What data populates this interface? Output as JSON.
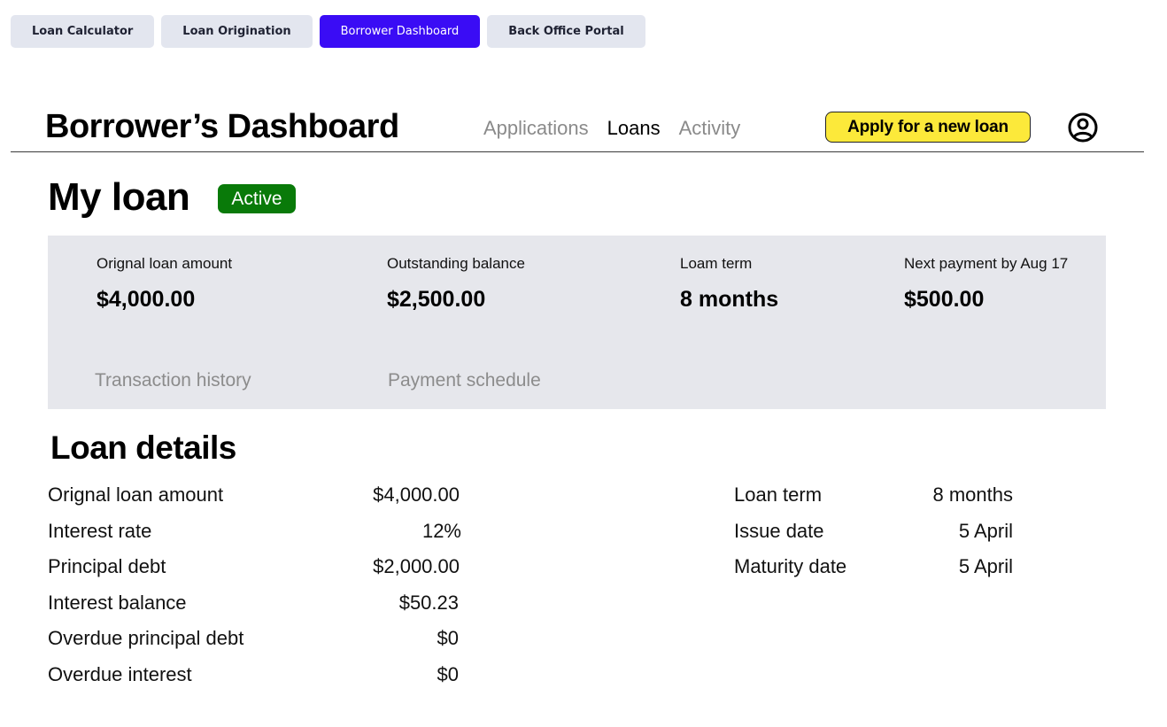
{
  "switcher": {
    "tabs": [
      {
        "label": "Loan Calculator",
        "active": false
      },
      {
        "label": "Loan Origination",
        "active": false
      },
      {
        "label": "Borrower Dashboard",
        "active": true
      },
      {
        "label": "Back Office Portal",
        "active": false
      }
    ]
  },
  "header": {
    "title": "Borrower’s Dashboard",
    "nav": [
      {
        "label": "Applications",
        "active": false
      },
      {
        "label": "Loans",
        "active": true
      },
      {
        "label": "Activity",
        "active": false
      }
    ],
    "apply_label": "Apply for a new loan",
    "profile_icon": "user-circle-icon"
  },
  "loan": {
    "title": "My loan",
    "status": "Active",
    "summary": [
      {
        "label": "Orignal loan amount",
        "value": "$4,000.00"
      },
      {
        "label": "Outstanding balance",
        "value": "$2,500.00"
      },
      {
        "label": "Loam term",
        "value": "8 months"
      },
      {
        "label": "Next payment by Aug 17",
        "value": "$500.00"
      }
    ],
    "links": {
      "transaction_history": "Transaction history",
      "payment_schedule": "Payment schedule"
    }
  },
  "details": {
    "title": "Loan details",
    "left": [
      {
        "label": "Orignal loan amount",
        "value": "$4,000.00"
      },
      {
        "label": "Interest rate",
        "value": "12%"
      },
      {
        "label": "Principal debt",
        "value": "$2,000.00"
      },
      {
        "label": "Interest balance",
        "value": "$50.23"
      },
      {
        "label": "Overdue principal debt",
        "value": "$0"
      },
      {
        "label": "Overdue interest",
        "value": "$0"
      }
    ],
    "right": [
      {
        "label": "Loan term",
        "value": "8 months"
      },
      {
        "label": "Issue date",
        "value": "5 April"
      },
      {
        "label": "Maturity date",
        "value": "5 April"
      }
    ]
  },
  "colors": {
    "accent": "#3a0cf5",
    "apply_button": "#fce93a",
    "status_active": "#097a09",
    "panel_bg": "#e6e7ec"
  }
}
